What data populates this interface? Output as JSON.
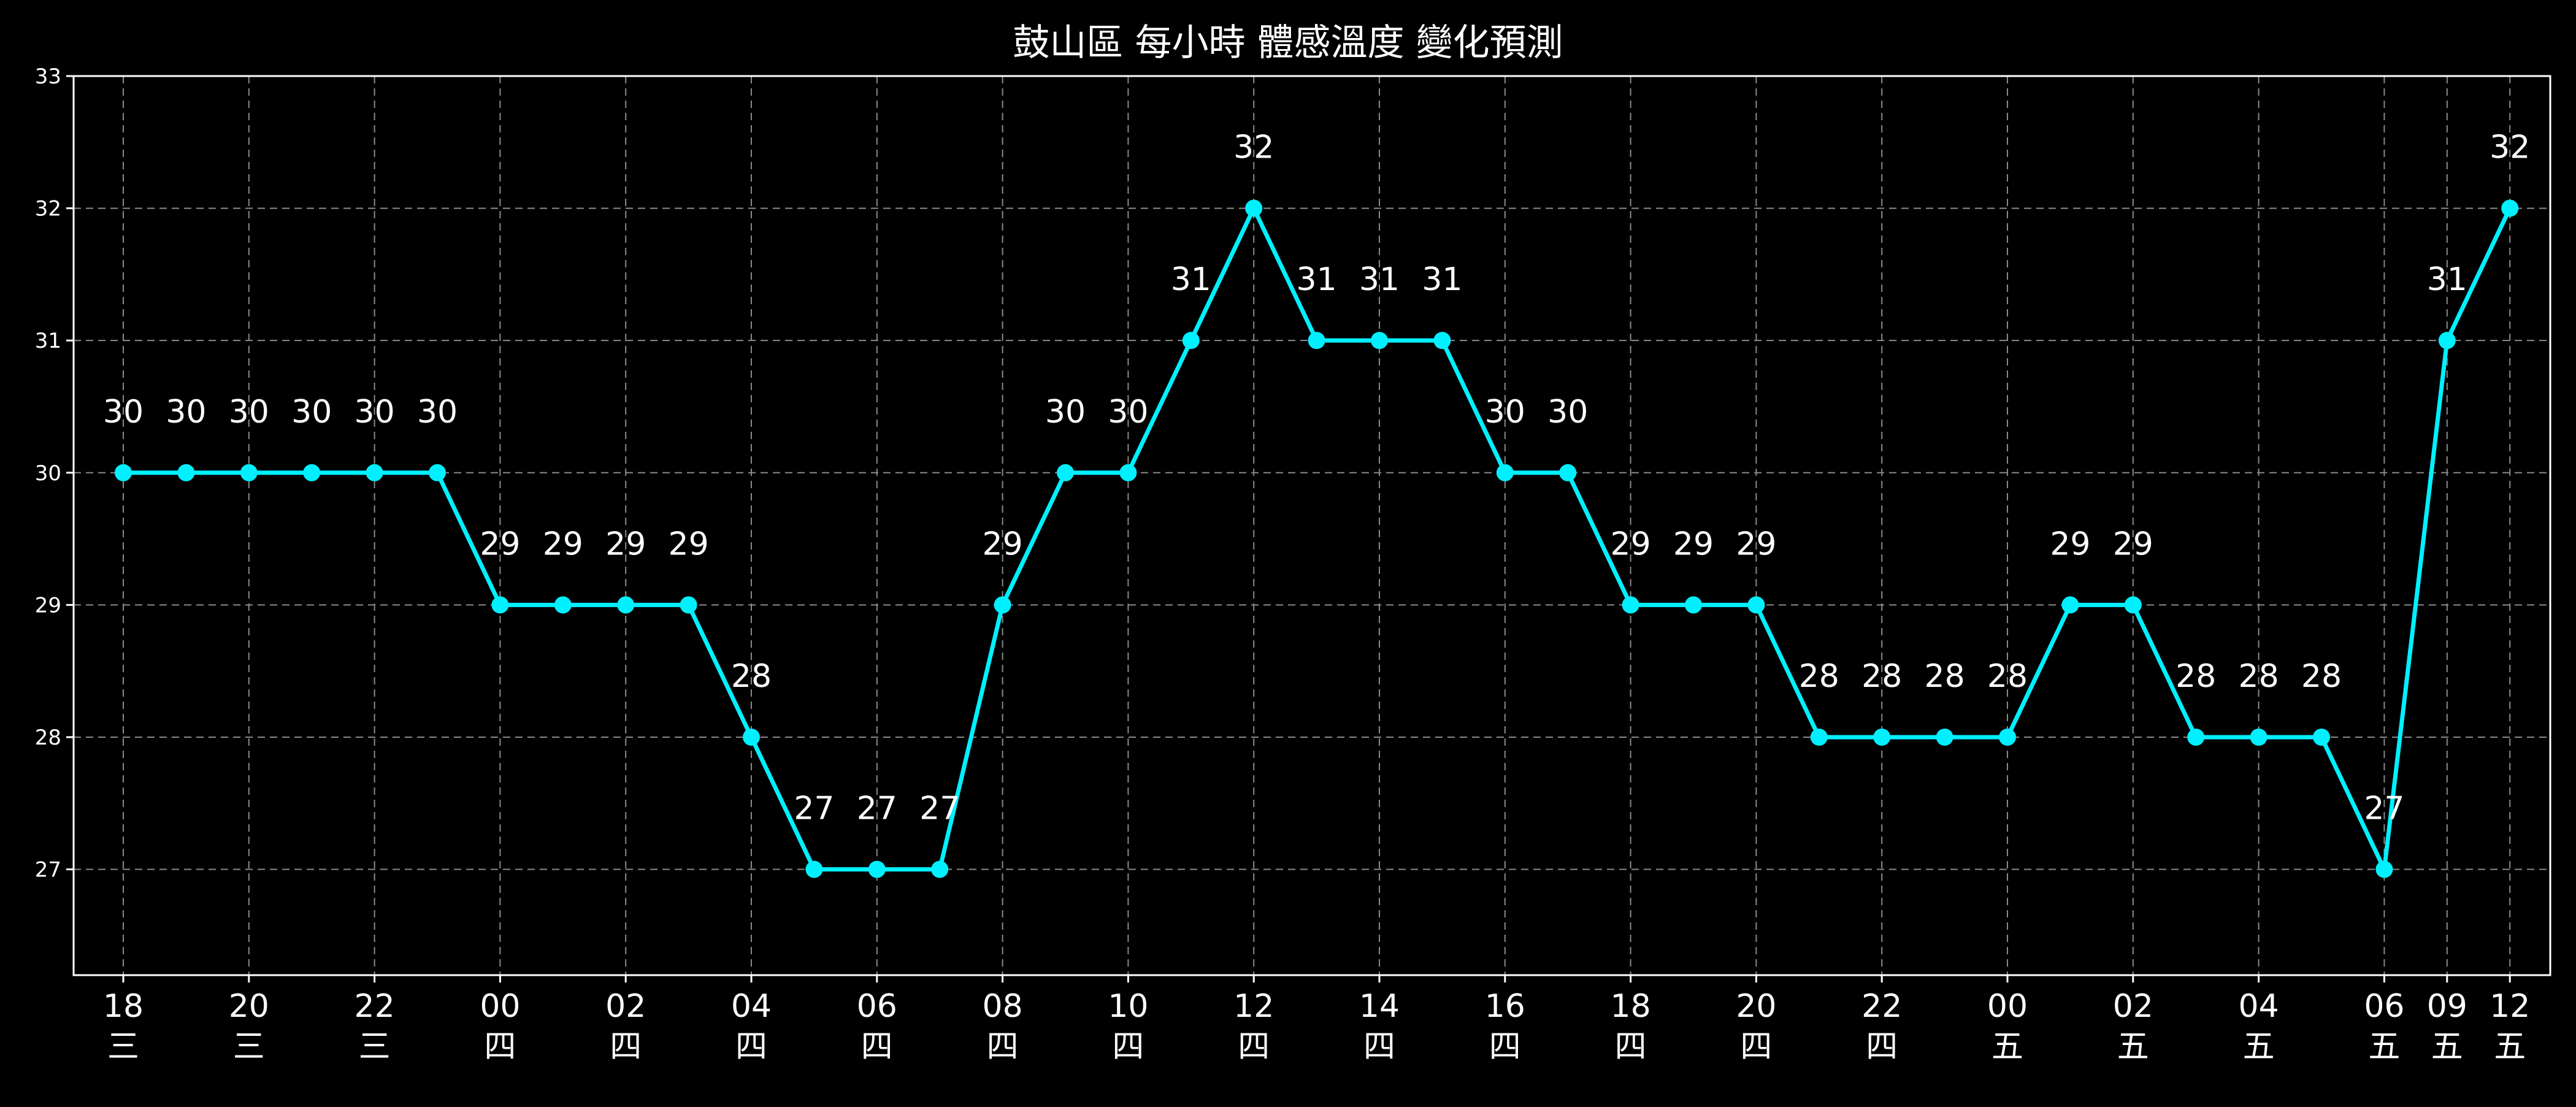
{
  "chart_data": {
    "type": "line",
    "title": "鼓山區 每小時 體感溫度 變化預測",
    "xlabel": "",
    "ylabel": "",
    "ylim": [
      26.2,
      33
    ],
    "yticks": [
      27,
      28,
      29,
      30,
      31,
      32,
      33
    ],
    "grid": true,
    "line_color": "#00f0ff",
    "background": "#000000",
    "values": [
      30,
      30,
      30,
      30,
      30,
      30,
      29,
      29,
      29,
      29,
      28,
      27,
      27,
      27,
      29,
      30,
      30,
      31,
      32,
      31,
      31,
      31,
      30,
      30,
      29,
      29,
      29,
      28,
      28,
      28,
      28,
      29,
      29,
      28,
      28,
      28,
      27,
      31,
      32
    ],
    "data_labels": [
      "30",
      "30",
      "30",
      "30",
      "30",
      "30",
      "29",
      "29",
      "29",
      "29",
      "28",
      "27",
      "27",
      "27",
      "29",
      "30",
      "30",
      "31",
      "32",
      "31",
      "31",
      "31",
      "30",
      "30",
      "29",
      "29",
      "29",
      "28",
      "28",
      "28",
      "28",
      "29",
      "29",
      "28",
      "28",
      "28",
      "27",
      "31",
      "32"
    ],
    "xticks": [
      {
        "index": 0,
        "hour": "18",
        "day": "三"
      },
      {
        "index": 2,
        "hour": "20",
        "day": "三"
      },
      {
        "index": 4,
        "hour": "22",
        "day": "三"
      },
      {
        "index": 6,
        "hour": "00",
        "day": "四"
      },
      {
        "index": 8,
        "hour": "02",
        "day": "四"
      },
      {
        "index": 10,
        "hour": "04",
        "day": "四"
      },
      {
        "index": 12,
        "hour": "06",
        "day": "四"
      },
      {
        "index": 14,
        "hour": "08",
        "day": "四"
      },
      {
        "index": 16,
        "hour": "10",
        "day": "四"
      },
      {
        "index": 18,
        "hour": "12",
        "day": "四"
      },
      {
        "index": 20,
        "hour": "14",
        "day": "四"
      },
      {
        "index": 22,
        "hour": "16",
        "day": "四"
      },
      {
        "index": 24,
        "hour": "18",
        "day": "四"
      },
      {
        "index": 26,
        "hour": "20",
        "day": "四"
      },
      {
        "index": 28,
        "hour": "22",
        "day": "四"
      },
      {
        "index": 30,
        "hour": "00",
        "day": "五"
      },
      {
        "index": 32,
        "hour": "02",
        "day": "五"
      },
      {
        "index": 34,
        "hour": "04",
        "day": "五"
      },
      {
        "index": 36,
        "hour": "06",
        "day": "五"
      },
      {
        "index": 37,
        "hour": "09",
        "day": "五"
      },
      {
        "index": 38,
        "hour": "12",
        "day": "五"
      }
    ]
  }
}
